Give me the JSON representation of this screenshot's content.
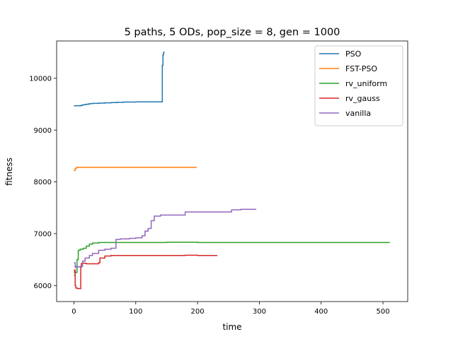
{
  "chart_data": {
    "type": "line",
    "title": "5 paths, 5 ODs, pop_size = 8, gen = 1000",
    "xlabel": "time",
    "ylabel": "fitness",
    "xlim": [
      -28,
      540
    ],
    "ylim": [
      5690,
      10720
    ],
    "xticks": [
      0,
      100,
      200,
      300,
      400,
      500
    ],
    "yticks": [
      6000,
      7000,
      8000,
      9000,
      10000
    ],
    "grid": false,
    "legend_position": "top-right",
    "series": [
      {
        "name": "PSO",
        "color": "#1f77b4",
        "x": [
          0,
          10,
          12,
          15,
          20,
          25,
          30,
          40,
          50,
          60,
          70,
          80,
          90,
          100,
          110,
          120,
          130,
          140,
          143,
          144,
          145,
          146
        ],
        "y": [
          9470,
          9470,
          9480,
          9490,
          9500,
          9510,
          9515,
          9520,
          9525,
          9530,
          9535,
          9540,
          9540,
          9545,
          9545,
          9545,
          9545,
          9545,
          10250,
          10450,
          10500,
          10510
        ]
      },
      {
        "name": "FST-PSO",
        "color": "#ff7f0e",
        "x": [
          0,
          2,
          4,
          10,
          50,
          100,
          150,
          198
        ],
        "y": [
          8220,
          8260,
          8280,
          8280,
          8280,
          8280,
          8280,
          8285
        ]
      },
      {
        "name": "rv_uniform",
        "color": "#2ca02c",
        "x": [
          0,
          2,
          5,
          7,
          10,
          15,
          20,
          25,
          30,
          40,
          60,
          100,
          150,
          200,
          250,
          300,
          350,
          400,
          450,
          511
        ],
        "y": [
          6200,
          6250,
          6500,
          6680,
          6700,
          6720,
          6760,
          6800,
          6820,
          6830,
          6830,
          6830,
          6835,
          6830,
          6830,
          6830,
          6830,
          6830,
          6830,
          6830
        ]
      },
      {
        "name": "rv_gauss",
        "color": "#d62728",
        "x": [
          0,
          1,
          2,
          3,
          6,
          10,
          11,
          12,
          13,
          20,
          30,
          40,
          42,
          50,
          60,
          80,
          100,
          150,
          180,
          200,
          232
        ],
        "y": [
          6250,
          6300,
          6000,
          5950,
          5940,
          5940,
          6350,
          6420,
          6430,
          6420,
          6420,
          6440,
          6530,
          6570,
          6580,
          6580,
          6580,
          6580,
          6585,
          6580,
          6580
        ]
      },
      {
        "name": "vanilla",
        "color": "#9467bd",
        "x": [
          0,
          2,
          4,
          6,
          10,
          14,
          18,
          25,
          30,
          40,
          50,
          60,
          68,
          75,
          90,
          100,
          110,
          115,
          120,
          125,
          130,
          140,
          160,
          180,
          200,
          240,
          255,
          270,
          295
        ],
        "y": [
          6440,
          6350,
          6370,
          6360,
          6370,
          6470,
          6530,
          6580,
          6620,
          6680,
          6700,
          6720,
          6890,
          6900,
          6910,
          6920,
          6960,
          7050,
          7100,
          7250,
          7340,
          7360,
          7360,
          7420,
          7420,
          7420,
          7460,
          7470,
          7470
        ]
      }
    ]
  }
}
